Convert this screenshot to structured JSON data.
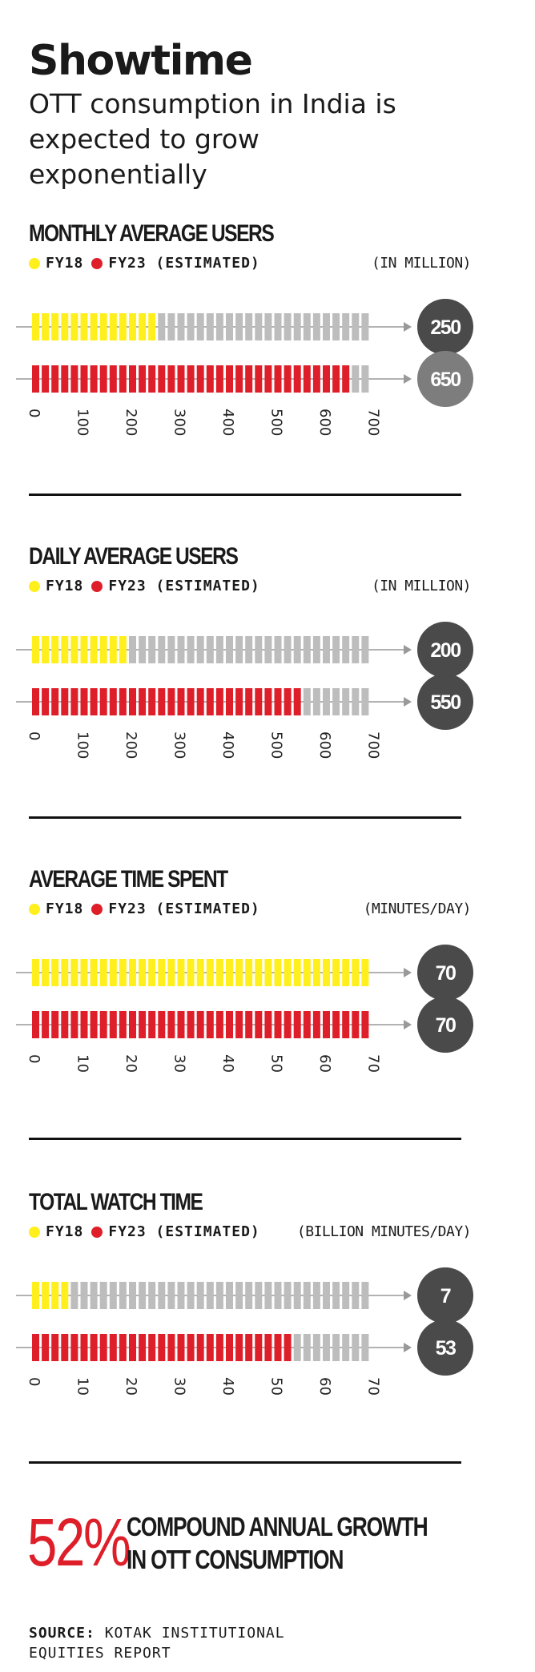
{
  "header": {
    "title": "Showtime",
    "subtitle": "OTT consumption in India is expected to grow exponentially"
  },
  "legend": {
    "fy18_label": "FY18",
    "fy23_label": "FY23 (ESTIMATED)"
  },
  "colors": {
    "fy18": "#FFEF1C",
    "fy23": "#DE1F2A",
    "inactive": "#BDBDBD",
    "bubble_dark": "#4A4A4A",
    "bubble_gray": "#7D7D7D",
    "arrow": "#999999",
    "accent": "#DE1F2A"
  },
  "chart_data": [
    {
      "type": "bar",
      "title": "MONTHLY AVERAGE USERS",
      "unit_label": "(IN MILLION)",
      "ticks": [
        "0",
        "100",
        "200",
        "300",
        "400",
        "500",
        "600",
        "700"
      ],
      "xlim": [
        0,
        700
      ],
      "series": [
        {
          "name": "FY18",
          "value": 250,
          "value_label": "250"
        },
        {
          "name": "FY23 (ESTIMATED)",
          "value": 650,
          "value_label": "650"
        }
      ]
    },
    {
      "type": "bar",
      "title": "DAILY AVERAGE USERS",
      "unit_label": "(IN MILLION)",
      "ticks": [
        "0",
        "100",
        "200",
        "300",
        "400",
        "500",
        "600",
        "700"
      ],
      "xlim": [
        0,
        700
      ],
      "series": [
        {
          "name": "FY18",
          "value": 200,
          "value_label": "200"
        },
        {
          "name": "FY23 (ESTIMATED)",
          "value": 550,
          "value_label": "550"
        }
      ]
    },
    {
      "type": "bar",
      "title": "AVERAGE TIME SPENT",
      "unit_label": "(MINUTES/DAY)",
      "ticks": [
        "0",
        "10",
        "20",
        "30",
        "40",
        "50",
        "60",
        "70"
      ],
      "xlim": [
        0,
        70
      ],
      "series": [
        {
          "name": "FY18",
          "value": 70,
          "value_label": "70"
        },
        {
          "name": "FY23 (ESTIMATED)",
          "value": 70,
          "value_label": "70"
        }
      ]
    },
    {
      "type": "bar",
      "title": "TOTAL WATCH TIME",
      "unit_label": "(BILLION MINUTES/DAY)",
      "ticks": [
        "0",
        "10",
        "20",
        "30",
        "40",
        "50",
        "60",
        "70"
      ],
      "xlim": [
        0,
        70
      ],
      "series": [
        {
          "name": "FY18",
          "value": 7,
          "value_label": "7"
        },
        {
          "name": "FY23 (ESTIMATED)",
          "value": 53,
          "value_label": "53"
        }
      ]
    }
  ],
  "cagr": {
    "value": "52%",
    "line1": "COMPOUND ANNUAL GROWTH",
    "line2": "IN OTT CONSUMPTION"
  },
  "source": {
    "label": "SOURCE:",
    "line1": "KOTAK INSTITUTIONAL",
    "line2": "EQUITIES REPORT"
  }
}
